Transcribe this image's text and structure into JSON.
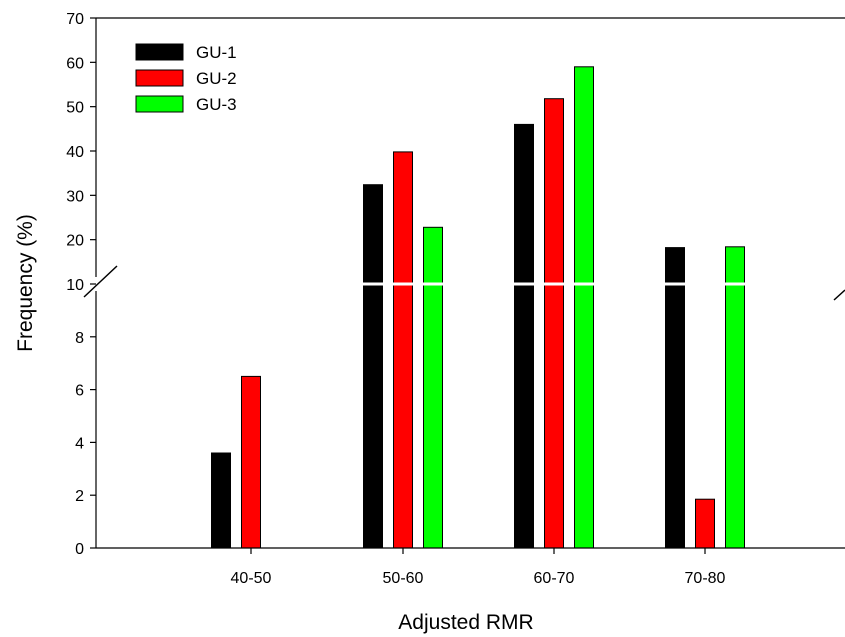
{
  "chart_data": {
    "type": "bar",
    "xlabel": "Adjusted RMR",
    "ylabel": "Frequency (%)",
    "categories": [
      "40-50",
      "50-60",
      "60-70",
      "70-80"
    ],
    "series": [
      {
        "name": "GU-1",
        "color": "#000000",
        "values": [
          3.6,
          32.4,
          46.0,
          18.2
        ]
      },
      {
        "name": "GU-2",
        "color": "#ff0000",
        "values": [
          6.5,
          39.8,
          51.8,
          1.85
        ]
      },
      {
        "name": "GU-3",
        "color": "#00ff00",
        "values": [
          0,
          22.8,
          59.0,
          18.4
        ]
      }
    ],
    "y_axis": {
      "broken": true,
      "break_at": 10,
      "lower_range": [
        0,
        10
      ],
      "upper_range": [
        10,
        70
      ],
      "lower_ticks": [
        "0",
        "2",
        "4",
        "6",
        "8"
      ],
      "upper_ticks": [
        "10",
        "20",
        "30",
        "40",
        "50",
        "60",
        "70"
      ]
    },
    "legend": {
      "position": "top-left"
    },
    "grid": false
  }
}
